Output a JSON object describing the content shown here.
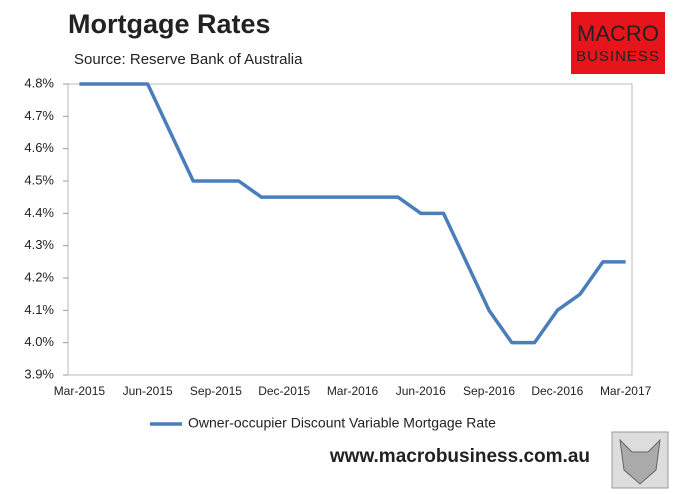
{
  "chart_data": {
    "type": "line",
    "title": "Mortgage Rates",
    "subtitle": "Source: Reserve Bank of Australia",
    "categories": [
      "Mar-2015",
      null,
      null,
      "Jun-2015",
      null,
      null,
      "Sep-2015",
      null,
      null,
      "Dec-2015",
      null,
      null,
      "Mar-2016",
      null,
      null,
      "Jun-2016",
      null,
      null,
      "Sep-2016",
      null,
      null,
      "Dec-2016",
      null,
      null,
      "Mar-2017"
    ],
    "series": [
      {
        "name": "Owner-occupier Discount Variable Mortgage Rate",
        "color": "#4a7ebb",
        "values": [
          4.8,
          4.8,
          4.8,
          4.8,
          4.65,
          4.5,
          4.5,
          4.5,
          4.45,
          4.45,
          4.45,
          4.45,
          4.45,
          4.45,
          4.45,
          4.4,
          4.4,
          4.25,
          4.1,
          4.0,
          4.0,
          4.1,
          4.15,
          4.25,
          4.25
        ]
      }
    ],
    "ylim": [
      3.9,
      4.8
    ],
    "yticks": [
      {
        "value": 3.9,
        "label": "3.9%"
      },
      {
        "value": 4.0,
        "label": "4.0%"
      },
      {
        "value": 4.1,
        "label": "4.1%"
      },
      {
        "value": 4.2,
        "label": "4.2%"
      },
      {
        "value": 4.3,
        "label": "4.3%"
      },
      {
        "value": 4.4,
        "label": "4.4%"
      },
      {
        "value": 4.5,
        "label": "4.5%"
      },
      {
        "value": 4.6,
        "label": "4.6%"
      },
      {
        "value": 4.7,
        "label": "4.7%"
      },
      {
        "value": 4.8,
        "label": "4.8%"
      }
    ],
    "grid": false
  },
  "logo": {
    "line1": "MACRO",
    "line2": "BUSINESS"
  },
  "website": "www.macrobusiness.com.au"
}
